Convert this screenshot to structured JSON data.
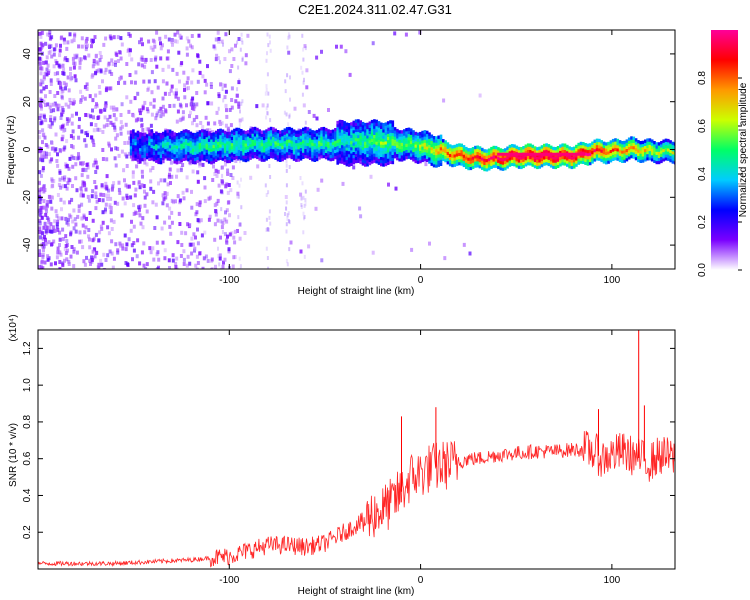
{
  "figure_title": "C2E1.2024.311.02.47.G31",
  "chart_data": [
    {
      "type": "heatmap",
      "title": "C2E1.2024.311.02.47.G31",
      "xlabel": "Height of straight line (km)",
      "ylabel": "Frequency (Hz)",
      "xlim": [
        -200,
        133
      ],
      "ylim": [
        -50,
        50
      ],
      "x_ticks": [
        -100,
        0,
        100
      ],
      "y_ticks": [
        -40,
        -20,
        0,
        20,
        40
      ],
      "colorbar": {
        "label": "Normalized spectral amplitude",
        "range": [
          0,
          1
        ],
        "ticks": [
          "0.0",
          "0.2",
          "0.4",
          "0.6",
          "0.8"
        ],
        "colormap": [
          "#ffffff",
          "#7a00ff",
          "#0000ff",
          "#00ccff",
          "#00ff66",
          "#ccff00",
          "#ff9900",
          "#ff0000",
          "#ff0099"
        ]
      },
      "ridge": {
        "x": [
          -150,
          -130,
          -110,
          -90,
          -70,
          -50,
          -40,
          -30,
          -20,
          -10,
          0,
          10,
          20,
          30,
          40,
          50,
          60,
          70,
          80,
          90,
          100,
          110,
          120,
          133
        ],
        "y": [
          2,
          2,
          2,
          3,
          3,
          3,
          4,
          4,
          4,
          3,
          2,
          0,
          -2,
          -3,
          -3,
          -2,
          -2,
          -2,
          -2,
          0,
          0,
          1,
          0,
          0
        ],
        "amplitude": [
          0.3,
          0.4,
          0.45,
          0.45,
          0.45,
          0.45,
          0.4,
          0.45,
          0.5,
          0.5,
          0.55,
          0.7,
          0.8,
          0.85,
          0.9,
          0.95,
          0.97,
          0.97,
          0.95,
          0.85,
          0.75,
          0.7,
          0.6,
          0.55
        ]
      }
    },
    {
      "type": "line",
      "xlabel": "Height of straight line (km)",
      "ylabel": "SNR (10 * v/v)",
      "y_multiplier": "(x10⁴)",
      "xlim": [
        -200,
        133
      ],
      "ylim": [
        0,
        1.3
      ],
      "x_ticks": [
        -100,
        0,
        100
      ],
      "y_ticks": [
        "0.2",
        "0.4",
        "0.6",
        "0.8",
        "1.0",
        "1.2"
      ],
      "series": [
        {
          "color": "#ff0000",
          "x": [
            -200,
            -180,
            -160,
            -140,
            -120,
            -100,
            -90,
            -80,
            -70,
            -60,
            -50,
            -40,
            -30,
            -25,
            -20,
            -15,
            -10,
            -5,
            0,
            5,
            10,
            15,
            20,
            25,
            30,
            40,
            50,
            60,
            70,
            80,
            85,
            90,
            95,
            100,
            105,
            110,
            115,
            120,
            125,
            133
          ],
          "y": [
            0.03,
            0.03,
            0.03,
            0.04,
            0.05,
            0.07,
            0.1,
            0.13,
            0.13,
            0.12,
            0.14,
            0.2,
            0.26,
            0.3,
            0.32,
            0.36,
            0.42,
            0.5,
            0.52,
            0.55,
            0.56,
            0.57,
            0.58,
            0.6,
            0.6,
            0.62,
            0.63,
            0.64,
            0.64,
            0.65,
            0.65,
            0.64,
            0.6,
            0.62,
            0.64,
            0.62,
            0.6,
            0.58,
            0.62,
            0.6
          ]
        }
      ],
      "spikes": [
        {
          "x": -10,
          "y": 0.83
        },
        {
          "x": 8,
          "y": 0.88
        },
        {
          "x": 93,
          "y": 0.87
        },
        {
          "x": 114,
          "y": 1.3
        },
        {
          "x": 117,
          "y": 0.89
        }
      ]
    }
  ]
}
